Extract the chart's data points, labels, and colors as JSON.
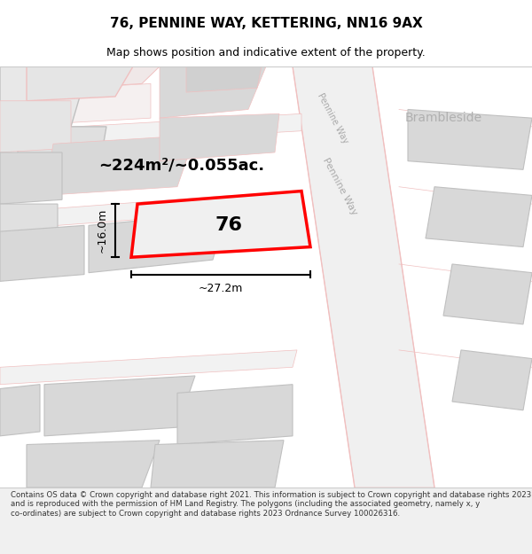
{
  "title": "76, PENNINE WAY, KETTERING, NN16 9AX",
  "subtitle": "Map shows position and indicative extent of the property.",
  "footer": "Contains OS data © Crown copyright and database right 2021. This information is subject to Crown copyright and database rights 2023 and is reproduced with the permission of HM Land Registry. The polygons (including the associated geometry, namely x, y co-ordinates) are subject to Crown copyright and database rights 2023 Ordnance Survey 100026316.",
  "area_label": "~224m²/~0.055ac.",
  "number_label": "76",
  "width_label": "~27.2m",
  "height_label": "~16.0m",
  "bg_color": "#f5f5f5",
  "map_bg": "#ffffff",
  "road_color": "#f0c0c0",
  "road_fill": "#f5f5f5",
  "building_fill": "#d8d8d8",
  "building_edge": "#c0c0c0",
  "highlight_fill": "#f0f0f0",
  "highlight_edge": "#ff0000",
  "road_label_color": "#aaaaaa",
  "street_label": "Pennine Way",
  "street_label2": "Pennine Way",
  "corner_label": "Brambleside"
}
